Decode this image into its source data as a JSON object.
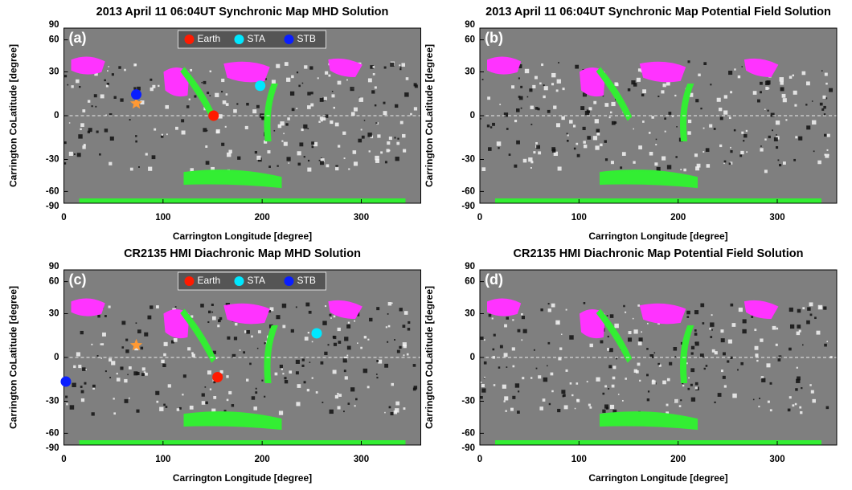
{
  "chart_data": [
    {
      "type": "scatter",
      "title": "2013 April 11 06:04UT Synchronic Map MHD Solution",
      "panel_label": "(a)",
      "x_label": "Carrington Longitude [degree]",
      "y_label": "Carrington CoLatitude [degree]",
      "xlim": [
        0,
        360
      ],
      "xticks": [
        0,
        100,
        200,
        300
      ],
      "ylim": [
        -90,
        90
      ],
      "yticks": [
        -90,
        -60,
        -30,
        0,
        30,
        60,
        90
      ],
      "yscale": "sine",
      "series": [
        {
          "name": "Earth",
          "color": "#ff1a00",
          "x": [
            151
          ],
          "y": [
            0
          ]
        },
        {
          "name": "STA",
          "color": "#00e8ff",
          "x": [
            198
          ],
          "y": [
            20
          ]
        },
        {
          "name": "STB",
          "color": "#0a1eff",
          "x": [
            73
          ],
          "y": [
            14
          ]
        }
      ]
    },
    {
      "type": "scatter",
      "title": "2013 April 11 06:04UT Synchronic Map Potential Field Solution",
      "panel_label": "(b)",
      "x_label": "Carrington Longitude [degree]",
      "y_label": "Carrington CoLatitude [degree]",
      "xlim": [
        0,
        360
      ],
      "xticks": [
        0,
        100,
        200,
        300
      ],
      "ylim": [
        -90,
        90
      ],
      "yticks": [
        -90,
        -60,
        -30,
        0,
        30,
        60,
        90
      ],
      "yscale": "sine",
      "series": []
    },
    {
      "type": "scatter",
      "title": "CR2135 HMI Diachronic Map MHD Solution",
      "panel_label": "(c)",
      "x_label": "Carrington Longitude [degree]",
      "y_label": "Carrington CoLatitude [degree]",
      "xlim": [
        0,
        360
      ],
      "xticks": [
        0,
        100,
        200,
        300
      ],
      "ylim": [
        -90,
        90
      ],
      "yticks": [
        -90,
        -60,
        -30,
        0,
        30,
        60,
        90
      ],
      "yscale": "sine",
      "series": [
        {
          "name": "Earth",
          "color": "#ff1a00",
          "x": [
            155
          ],
          "y": [
            -13
          ]
        },
        {
          "name": "STA",
          "color": "#00e8ff",
          "x": [
            255
          ],
          "y": [
            16
          ]
        },
        {
          "name": "STB",
          "color": "#0a1eff",
          "x": [
            2
          ],
          "y": [
            -16
          ]
        }
      ]
    },
    {
      "type": "scatter",
      "title": "CR2135 HMI Diachronic Map Potential Field Solution",
      "panel_label": "(d)",
      "x_label": "Carrington Longitude [degree]",
      "y_label": "Carrington CoLatitude [degree]",
      "xlim": [
        0,
        360
      ],
      "xticks": [
        0,
        100,
        200,
        300
      ],
      "ylim": [
        -90,
        90
      ],
      "yticks": [
        -90,
        -60,
        -30,
        0,
        30,
        60,
        90
      ],
      "yscale": "sine",
      "series": []
    }
  ]
}
